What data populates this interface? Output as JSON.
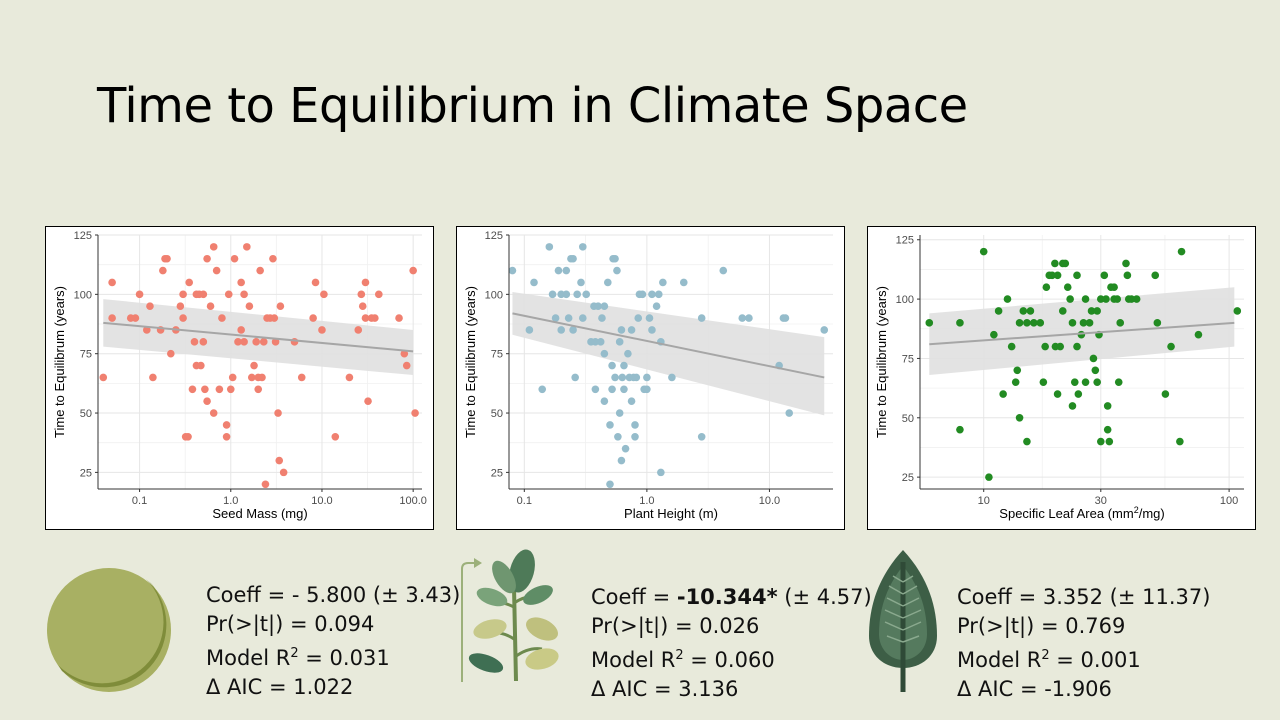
{
  "title": "Time to Equilibrium in Climate Space",
  "colors": {
    "background": "#e8eadb",
    "seed": "#f08070",
    "height": "#95bccb",
    "sla": "#228b22",
    "trend": "#a6a6a6",
    "band": "#e0e0e0"
  },
  "icons": [
    "seed-icon",
    "seedling-icon",
    "leaf-icon"
  ],
  "chart_data": [
    {
      "type": "scatter",
      "xlabel": "Seed Mass (mg)",
      "ylabel": "Time to Equilibrum (years)",
      "x_scale": "log",
      "xlim": [
        0.035,
        125
      ],
      "ylim": [
        18,
        125
      ],
      "xticks": [
        0.1,
        1,
        10,
        100
      ],
      "xtick_labels": [
        "0.1",
        "1.0",
        "10.0",
        "100.0"
      ],
      "yticks": [
        25,
        50,
        75,
        100,
        125
      ],
      "ytick_labels": [
        "25",
        "50",
        "75",
        "100",
        "125"
      ],
      "grid": true,
      "trend": {
        "x": [
          0.04,
          100
        ],
        "y": [
          88,
          76
        ],
        "band_lower": [
          78,
          66
        ],
        "band_upper": [
          98,
          85
        ]
      },
      "points": [
        [
          0.04,
          65
        ],
        [
          0.05,
          105
        ],
        [
          0.05,
          90
        ],
        [
          0.08,
          90
        ],
        [
          0.09,
          90
        ],
        [
          0.1,
          100
        ],
        [
          0.12,
          85
        ],
        [
          0.13,
          95
        ],
        [
          0.14,
          65
        ],
        [
          0.17,
          85
        ],
        [
          0.18,
          110
        ],
        [
          0.19,
          115
        ],
        [
          0.2,
          115
        ],
        [
          0.22,
          75
        ],
        [
          0.25,
          85
        ],
        [
          0.28,
          95
        ],
        [
          0.3,
          90
        ],
        [
          0.3,
          100
        ],
        [
          0.32,
          40
        ],
        [
          0.34,
          40
        ],
        [
          0.35,
          105
        ],
        [
          0.38,
          60
        ],
        [
          0.4,
          80
        ],
        [
          0.42,
          70
        ],
        [
          0.42,
          100
        ],
        [
          0.45,
          100
        ],
        [
          0.47,
          70
        ],
        [
          0.5,
          100
        ],
        [
          0.5,
          80
        ],
        [
          0.52,
          60
        ],
        [
          0.55,
          115
        ],
        [
          0.55,
          55
        ],
        [
          0.6,
          95
        ],
        [
          0.65,
          120
        ],
        [
          0.65,
          50
        ],
        [
          0.7,
          110
        ],
        [
          0.75,
          60
        ],
        [
          0.8,
          90
        ],
        [
          0.9,
          40
        ],
        [
          0.9,
          45
        ],
        [
          0.95,
          100
        ],
        [
          1,
          60
        ],
        [
          1.05,
          65
        ],
        [
          1.1,
          115
        ],
        [
          1.2,
          80
        ],
        [
          1.3,
          85
        ],
        [
          1.3,
          105
        ],
        [
          1.4,
          80
        ],
        [
          1.4,
          100
        ],
        [
          1.5,
          120
        ],
        [
          1.6,
          95
        ],
        [
          1.7,
          65
        ],
        [
          1.8,
          70
        ],
        [
          1.9,
          80
        ],
        [
          2,
          60
        ],
        [
          2,
          65
        ],
        [
          2.1,
          110
        ],
        [
          2.2,
          65
        ],
        [
          2.3,
          80
        ],
        [
          2.4,
          20
        ],
        [
          2.5,
          90
        ],
        [
          2.7,
          90
        ],
        [
          2.9,
          115
        ],
        [
          3,
          90
        ],
        [
          3.1,
          80
        ],
        [
          3.3,
          50
        ],
        [
          3.4,
          30
        ],
        [
          3.5,
          95
        ],
        [
          3.8,
          25
        ],
        [
          5,
          80
        ],
        [
          6,
          65
        ],
        [
          8,
          90
        ],
        [
          8.5,
          105
        ],
        [
          10,
          85
        ],
        [
          10.5,
          100
        ],
        [
          14,
          40
        ],
        [
          20,
          65
        ],
        [
          25,
          85
        ],
        [
          27,
          100
        ],
        [
          28,
          95
        ],
        [
          30,
          90
        ],
        [
          30,
          105
        ],
        [
          32,
          55
        ],
        [
          35,
          90
        ],
        [
          38,
          90
        ],
        [
          42,
          100
        ],
        [
          70,
          90
        ],
        [
          80,
          75
        ],
        [
          85,
          70
        ],
        [
          100,
          110
        ],
        [
          105,
          50
        ]
      ]
    },
    {
      "type": "scatter",
      "xlabel": "Plant Height (m)",
      "ylabel": "Time to Equilibrum (years)",
      "x_scale": "log",
      "xlim": [
        0.075,
        33
      ],
      "ylim": [
        18,
        125
      ],
      "xticks": [
        0.1,
        1,
        10
      ],
      "xtick_labels": [
        "0.1",
        "1.0",
        "10.0"
      ],
      "yticks": [
        25,
        50,
        75,
        100,
        125
      ],
      "ytick_labels": [
        "25",
        "50",
        "75",
        "100",
        "125"
      ],
      "grid": true,
      "trend": {
        "x": [
          0.08,
          28
        ],
        "y": [
          92,
          65
        ],
        "band_lower": [
          83,
          49
        ],
        "band_upper": [
          101,
          82
        ]
      },
      "points": [
        [
          0.08,
          110
        ],
        [
          0.11,
          85
        ],
        [
          0.12,
          105
        ],
        [
          0.14,
          60
        ],
        [
          0.16,
          120
        ],
        [
          0.17,
          100
        ],
        [
          0.18,
          90
        ],
        [
          0.19,
          110
        ],
        [
          0.2,
          100
        ],
        [
          0.2,
          85
        ],
        [
          0.22,
          110
        ],
        [
          0.22,
          100
        ],
        [
          0.23,
          90
        ],
        [
          0.24,
          115
        ],
        [
          0.25,
          115
        ],
        [
          0.25,
          85
        ],
        [
          0.26,
          65
        ],
        [
          0.27,
          100
        ],
        [
          0.29,
          105
        ],
        [
          0.3,
          120
        ],
        [
          0.3,
          90
        ],
        [
          0.32,
          100
        ],
        [
          0.35,
          80
        ],
        [
          0.37,
          95
        ],
        [
          0.38,
          60
        ],
        [
          0.38,
          80
        ],
        [
          0.4,
          95
        ],
        [
          0.42,
          80
        ],
        [
          0.43,
          90
        ],
        [
          0.45,
          95
        ],
        [
          0.45,
          75
        ],
        [
          0.45,
          55
        ],
        [
          0.48,
          105
        ],
        [
          0.5,
          20
        ],
        [
          0.5,
          45
        ],
        [
          0.52,
          70
        ],
        [
          0.52,
          60
        ],
        [
          0.53,
          115
        ],
        [
          0.55,
          115
        ],
        [
          0.55,
          65
        ],
        [
          0.57,
          110
        ],
        [
          0.58,
          40
        ],
        [
          0.6,
          80
        ],
        [
          0.6,
          50
        ],
        [
          0.62,
          30
        ],
        [
          0.62,
          85
        ],
        [
          0.63,
          65
        ],
        [
          0.65,
          70
        ],
        [
          0.65,
          60
        ],
        [
          0.67,
          35
        ],
        [
          0.7,
          75
        ],
        [
          0.72,
          65
        ],
        [
          0.75,
          85
        ],
        [
          0.75,
          55
        ],
        [
          0.78,
          65
        ],
        [
          0.8,
          45
        ],
        [
          0.8,
          40
        ],
        [
          0.82,
          65
        ],
        [
          0.85,
          90
        ],
        [
          0.87,
          100
        ],
        [
          0.92,
          100
        ],
        [
          0.95,
          60
        ],
        [
          1,
          65
        ],
        [
          1,
          60
        ],
        [
          1.05,
          90
        ],
        [
          1.1,
          100
        ],
        [
          1.1,
          85
        ],
        [
          1.2,
          95
        ],
        [
          1.25,
          100
        ],
        [
          1.3,
          25
        ],
        [
          1.3,
          80
        ],
        [
          1.35,
          105
        ],
        [
          1.6,
          65
        ],
        [
          2,
          105
        ],
        [
          2.8,
          40
        ],
        [
          2.8,
          90
        ],
        [
          4.2,
          110
        ],
        [
          6,
          90
        ],
        [
          6.8,
          90
        ],
        [
          12,
          70
        ],
        [
          13,
          90
        ],
        [
          13.5,
          90
        ],
        [
          14.5,
          50
        ],
        [
          28,
          85
        ]
      ]
    },
    {
      "type": "scatter",
      "xlabel": "Specific Leaf Area (mm",
      "xlabel_sup": "2",
      "xlabel_suffix": "/mg)",
      "ylabel": "Time to Equilibrum (years)",
      "x_scale": "log",
      "xlim": [
        5.5,
        115
      ],
      "ylim": [
        20,
        127
      ],
      "xticks": [
        10,
        30,
        100
      ],
      "xtick_labels": [
        "10",
        "30",
        "100"
      ],
      "yticks": [
        25,
        50,
        75,
        100,
        125
      ],
      "ytick_labels": [
        "25",
        "50",
        "75",
        "100",
        "125"
      ],
      "grid": true,
      "trend": {
        "x": [
          6,
          105
        ],
        "y": [
          81,
          90
        ],
        "band_lower": [
          68,
          80
        ],
        "band_upper": [
          94,
          105
        ]
      },
      "points": [
        [
          6,
          90
        ],
        [
          8,
          45
        ],
        [
          8,
          90
        ],
        [
          10,
          120
        ],
        [
          10.5,
          25
        ],
        [
          11,
          85
        ],
        [
          11.5,
          95
        ],
        [
          12,
          60
        ],
        [
          12.5,
          100
        ],
        [
          13,
          80
        ],
        [
          13.5,
          65
        ],
        [
          13.7,
          70
        ],
        [
          14,
          90
        ],
        [
          14,
          50
        ],
        [
          14.5,
          95
        ],
        [
          15,
          40
        ],
        [
          15,
          90
        ],
        [
          15.5,
          95
        ],
        [
          16,
          90
        ],
        [
          17,
          90
        ],
        [
          17.5,
          65
        ],
        [
          17.8,
          80
        ],
        [
          18,
          105
        ],
        [
          18.5,
          110
        ],
        [
          19,
          110
        ],
        [
          19.5,
          115
        ],
        [
          19.6,
          80
        ],
        [
          20,
          60
        ],
        [
          20,
          110
        ],
        [
          20.5,
          80
        ],
        [
          21,
          115
        ],
        [
          21,
          95
        ],
        [
          21.5,
          115
        ],
        [
          22,
          105
        ],
        [
          22.5,
          100
        ],
        [
          23,
          55
        ],
        [
          23,
          90
        ],
        [
          23.5,
          65
        ],
        [
          24,
          110
        ],
        [
          24,
          80
        ],
        [
          24.3,
          60
        ],
        [
          25,
          85
        ],
        [
          25.5,
          90
        ],
        [
          26,
          65
        ],
        [
          26,
          100
        ],
        [
          27,
          90
        ],
        [
          27.5,
          95
        ],
        [
          28,
          75
        ],
        [
          28.5,
          70
        ],
        [
          29,
          65
        ],
        [
          29,
          95
        ],
        [
          29.5,
          85
        ],
        [
          30,
          40
        ],
        [
          30,
          100
        ],
        [
          31,
          110
        ],
        [
          31.5,
          100
        ],
        [
          32,
          55
        ],
        [
          32,
          45
        ],
        [
          32.5,
          40
        ],
        [
          33,
          105
        ],
        [
          34,
          100
        ],
        [
          34,
          105
        ],
        [
          35,
          100
        ],
        [
          35.5,
          65
        ],
        [
          36,
          90
        ],
        [
          38,
          115
        ],
        [
          38.5,
          110
        ],
        [
          39,
          100
        ],
        [
          40,
          100
        ],
        [
          42,
          100
        ],
        [
          50,
          110
        ],
        [
          51,
          90
        ],
        [
          55,
          60
        ],
        [
          58,
          80
        ],
        [
          63,
          40
        ],
        [
          64,
          120
        ],
        [
          75,
          85
        ],
        [
          108,
          95
        ]
      ]
    }
  ],
  "stats": [
    {
      "coeff_label": "Coeff = ",
      "coeff_value": "- 5.800",
      "coeff_err": " (± 3.43)",
      "pr": "Pr(>|t|) = 0.094",
      "r2_label": "Model R",
      "r2_sup": "2",
      "r2_value": " = 0.031",
      "aic": "Δ AIC = 1.022"
    },
    {
      "coeff_label": "Coeff = ",
      "coeff_value": "-10.344*",
      "coeff_err": " (± 4.57)",
      "pr": "Pr(>|t|) = 0.026",
      "r2_label": "Model R",
      "r2_sup": "2",
      "r2_value": " = 0.060",
      "aic": "Δ AIC = 3.136"
    },
    {
      "coeff_label": "Coeff = ",
      "coeff_value": "3.352",
      "coeff_err": " (± 11.37)",
      "pr": "Pr(>|t|) = 0.769",
      "r2_label": "Model R",
      "r2_sup": "2",
      "r2_value": " = 0.001",
      "aic": "Δ AIC = -1.906"
    }
  ]
}
